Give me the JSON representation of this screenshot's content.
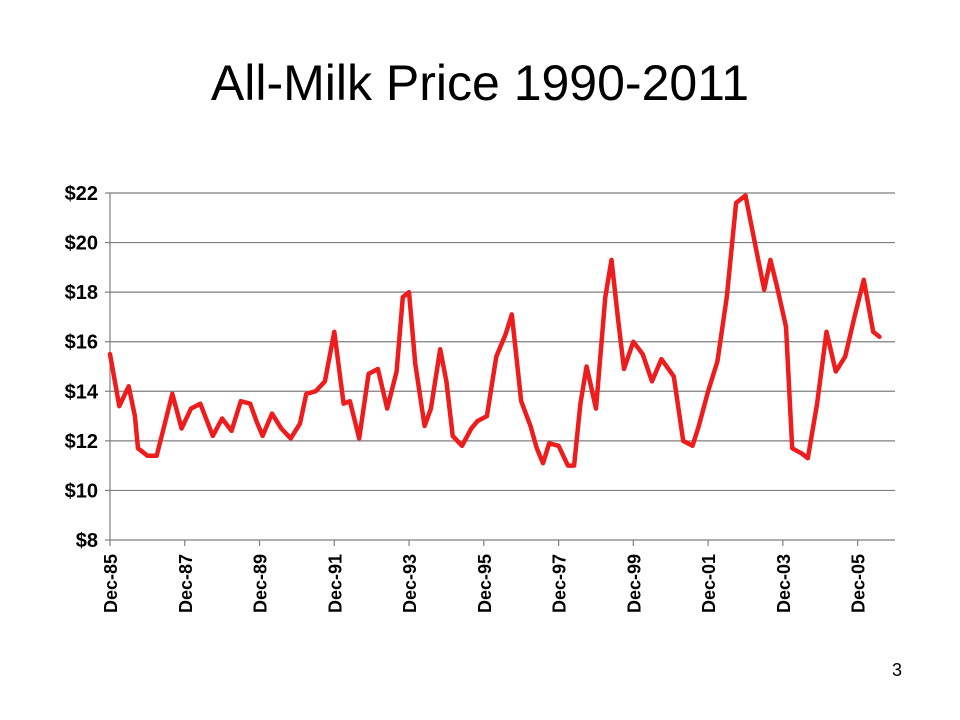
{
  "slide": {
    "title": "All-Milk Price 1990-2011",
    "page_number": "3"
  },
  "colors": {
    "series": "#ee1c1c",
    "grid": "#7f7f7f",
    "axis": "#7f7f7f"
  },
  "chart_data": {
    "type": "line",
    "title": "All-Milk Price 1990-2011",
    "xlabel": "",
    "ylabel": "",
    "ylim": [
      8,
      22
    ],
    "y_ticks": [
      8,
      10,
      12,
      14,
      16,
      18,
      20,
      22
    ],
    "y_tick_labels": [
      "$8",
      "$10",
      "$12",
      "$14",
      "$16",
      "$18",
      "$20",
      "$22"
    ],
    "x_range": [
      "1985-12",
      "2006-12"
    ],
    "x_ticks": [
      "1985-12",
      "1987-12",
      "1989-12",
      "1991-12",
      "1993-12",
      "1995-12",
      "1997-12",
      "1999-12",
      "2001-12",
      "2003-12",
      "2005-12"
    ],
    "x_tick_labels": [
      "Dec-85",
      "Dec-87",
      "Dec-89",
      "Dec-91",
      "Dec-93",
      "Dec-95",
      "Dec-97",
      "Dec-99",
      "Dec-01",
      "Dec-03",
      "Dec-05"
    ],
    "grid": "horizontal",
    "legend": "none",
    "series": [
      {
        "points": [
          [
            "1985-12",
            15.5
          ],
          [
            "1986-03",
            13.4
          ],
          [
            "1986-06",
            14.2
          ],
          [
            "1986-08",
            13.0
          ],
          [
            "1986-09",
            11.7
          ],
          [
            "1986-12",
            11.4
          ],
          [
            "1987-03",
            11.4
          ],
          [
            "1987-06",
            12.9
          ],
          [
            "1987-08",
            13.9
          ],
          [
            "1987-11",
            12.5
          ],
          [
            "1988-02",
            13.3
          ],
          [
            "1988-05",
            13.5
          ],
          [
            "1988-09",
            12.2
          ],
          [
            "1988-12",
            12.9
          ],
          [
            "1989-03",
            12.4
          ],
          [
            "1989-06",
            13.6
          ],
          [
            "1989-09",
            13.5
          ],
          [
            "1989-11",
            12.8
          ],
          [
            "1990-01",
            12.2
          ],
          [
            "1990-04",
            13.1
          ],
          [
            "1990-07",
            12.5
          ],
          [
            "1990-10",
            12.1
          ],
          [
            "1991-01",
            12.7
          ],
          [
            "1991-03",
            13.9
          ],
          [
            "1991-06",
            14.0
          ],
          [
            "1991-09",
            14.4
          ],
          [
            "1991-12",
            16.4
          ],
          [
            "1992-03",
            13.5
          ],
          [
            "1992-05",
            13.6
          ],
          [
            "1992-08",
            12.1
          ],
          [
            "1992-11",
            14.7
          ],
          [
            "1993-02",
            14.9
          ],
          [
            "1993-05",
            13.3
          ],
          [
            "1993-08",
            14.8
          ],
          [
            "1993-10",
            17.8
          ],
          [
            "1993-12",
            18.0
          ],
          [
            "1994-02",
            15.1
          ],
          [
            "1994-05",
            12.6
          ],
          [
            "1994-07",
            13.3
          ],
          [
            "1994-10",
            15.7
          ],
          [
            "1994-12",
            14.4
          ],
          [
            "1995-02",
            12.2
          ],
          [
            "1995-05",
            11.8
          ],
          [
            "1995-08",
            12.5
          ],
          [
            "1995-10",
            12.8
          ],
          [
            "1996-01",
            13.0
          ],
          [
            "1996-04",
            15.4
          ],
          [
            "1996-07",
            16.3
          ],
          [
            "1996-09",
            17.1
          ],
          [
            "1996-12",
            13.6
          ],
          [
            "1997-03",
            12.6
          ],
          [
            "1997-05",
            11.7
          ],
          [
            "1997-07",
            11.1
          ],
          [
            "1997-09",
            11.9
          ],
          [
            "1997-12",
            11.8
          ],
          [
            "1998-03",
            11.0
          ],
          [
            "1998-05",
            11.0
          ],
          [
            "1998-07",
            13.5
          ],
          [
            "1998-09",
            15.0
          ],
          [
            "1998-12",
            13.3
          ],
          [
            "1999-03",
            17.8
          ],
          [
            "1999-05",
            19.3
          ],
          [
            "1999-07",
            17.0
          ],
          [
            "1999-09",
            14.9
          ],
          [
            "1999-12",
            16.0
          ],
          [
            "2000-03",
            15.5
          ],
          [
            "2000-06",
            14.4
          ],
          [
            "2000-09",
            15.3
          ],
          [
            "2001-01",
            14.6
          ],
          [
            "2001-04",
            12.0
          ],
          [
            "2001-07",
            11.8
          ],
          [
            "2001-09",
            12.6
          ],
          [
            "2001-12",
            14.0
          ],
          [
            "2002-03",
            15.2
          ],
          [
            "2002-06",
            17.8
          ],
          [
            "2002-09",
            21.6
          ],
          [
            "2002-12",
            21.9
          ],
          [
            "2003-03",
            20.0
          ],
          [
            "2003-06",
            18.1
          ],
          [
            "2003-08",
            19.3
          ],
          [
            "2003-10",
            18.3
          ],
          [
            "2004-01",
            16.6
          ],
          [
            "2004-03",
            11.7
          ],
          [
            "2004-06",
            11.5
          ],
          [
            "2004-08",
            11.3
          ],
          [
            "2004-11",
            13.5
          ],
          [
            "2005-02",
            16.4
          ],
          [
            "2005-05",
            14.8
          ],
          [
            "2005-08",
            15.4
          ],
          [
            "2005-11",
            17.0
          ],
          [
            "2006-02",
            18.5
          ],
          [
            "2006-05",
            16.4
          ],
          [
            "2006-07",
            16.2
          ]
        ]
      }
    ]
  }
}
